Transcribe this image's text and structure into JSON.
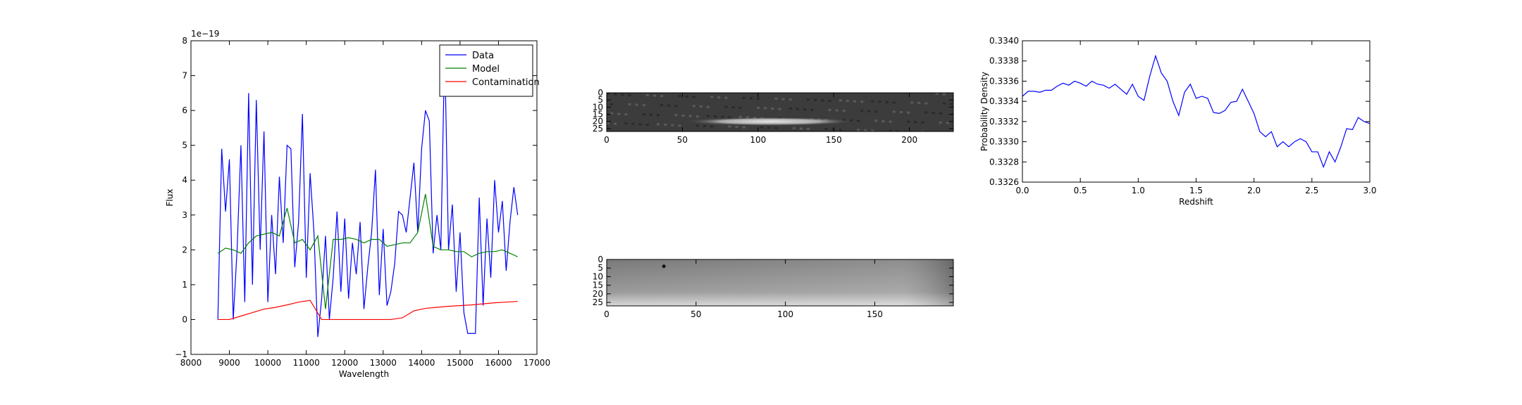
{
  "chart_data": [
    {
      "type": "line",
      "xlabel": "Wavelength",
      "ylabel": "Flux",
      "offset_text": "1e−19",
      "xlim": [
        8000,
        17000
      ],
      "xticks": [
        8000,
        9000,
        10000,
        11000,
        12000,
        13000,
        14000,
        15000,
        16000,
        17000
      ],
      "ylim": [
        -1,
        8
      ],
      "yticks": [
        {
          "value": -1,
          "label": "−1"
        },
        0,
        1,
        2,
        3,
        4,
        5,
        6,
        7,
        8
      ],
      "legend": "upper right",
      "series": [
        {
          "name": "Data",
          "color": "#0000ff",
          "x": [
            8700,
            8800,
            8900,
            9000,
            9100,
            9200,
            9300,
            9400,
            9500,
            9600,
            9700,
            9800,
            9900,
            10000,
            10100,
            10200,
            10300,
            10400,
            10500,
            10600,
            10700,
            10800,
            10900,
            11000,
            11100,
            11200,
            11300,
            11400,
            11500,
            11600,
            11700,
            11800,
            11900,
            12000,
            12100,
            12200,
            12300,
            12400,
            12500,
            12600,
            12700,
            12800,
            12900,
            13000,
            13100,
            13200,
            13300,
            13400,
            13500,
            13600,
            13700,
            13800,
            13900,
            14000,
            14100,
            14200,
            14300,
            14400,
            14500,
            14600,
            14700,
            14800,
            14900,
            15000,
            15100,
            15200,
            15300,
            15400,
            15500,
            15600,
            15700,
            15800,
            15900,
            16000,
            16100,
            16200,
            16300,
            16400,
            16500
          ],
          "values": [
            0,
            4.9,
            3.1,
            4.6,
            0,
            2,
            5,
            0.5,
            6.5,
            1,
            6.3,
            2,
            5.4,
            0.5,
            3,
            1.3,
            4.1,
            2.2,
            5,
            4.9,
            1.5,
            2.8,
            5.9,
            1.2,
            4.2,
            2.5,
            -0.5,
            0.6,
            2.4,
            0,
            1.2,
            3.1,
            0.8,
            2.9,
            0.6,
            2.2,
            1.3,
            2.8,
            0.3,
            1.5,
            2.5,
            4.3,
            0.7,
            2.6,
            0.4,
            0.8,
            1.6,
            3.1,
            3,
            2.5,
            3.5,
            4.5,
            2.5,
            4.9,
            6,
            5.7,
            1.9,
            3,
            2,
            7.8,
            2,
            3.3,
            0.8,
            2.5,
            0.2,
            -0.4,
            -0.4,
            -0.4,
            3.5,
            0.4,
            2.9,
            1.2,
            4,
            2.5,
            3.4,
            1.4,
            2.8,
            3.8,
            3
          ]
        },
        {
          "name": "Model",
          "color": "#008000",
          "x": [
            8700,
            8900,
            9100,
            9300,
            9500,
            9700,
            9900,
            10100,
            10300,
            10500,
            10700,
            10900,
            11100,
            11300,
            11500,
            11700,
            11900,
            12100,
            12300,
            12500,
            12700,
            12900,
            13100,
            13300,
            13500,
            13700,
            13900,
            14100,
            14300,
            14500,
            14700,
            14900,
            15100,
            15300,
            15500,
            15700,
            15900,
            16100,
            16300,
            16500
          ],
          "values": [
            1.9,
            2.05,
            2,
            1.9,
            2.2,
            2.4,
            2.45,
            2.5,
            2.4,
            3.2,
            2.2,
            2.3,
            2.0,
            2.4,
            0.3,
            2.3,
            2.3,
            2.35,
            2.3,
            2.2,
            2.3,
            2.3,
            2.1,
            2.15,
            2.2,
            2.2,
            2.5,
            3.6,
            2.1,
            2.0,
            2.0,
            1.95,
            1.95,
            1.8,
            1.9,
            1.95,
            1.95,
            2.0,
            1.9,
            1.8
          ]
        },
        {
          "name": "Contamination",
          "color": "#ff0000",
          "x": [
            8700,
            9000,
            9300,
            9600,
            9900,
            10200,
            10500,
            10800,
            11100,
            11400,
            11700,
            12000,
            12300,
            12600,
            12900,
            13200,
            13500,
            13800,
            14100,
            14400,
            14700,
            15000,
            15300,
            15600,
            15900,
            16200,
            16500
          ],
          "values": [
            0,
            0,
            0.1,
            0.2,
            0.3,
            0.35,
            0.42,
            0.5,
            0.55,
            0,
            0,
            0,
            0,
            0,
            0,
            0,
            0.05,
            0.25,
            0.32,
            0.35,
            0.38,
            0.4,
            0.42,
            0.45,
            0.48,
            0.5,
            0.52
          ]
        }
      ]
    },
    {
      "type": "image",
      "xlim": [
        0,
        229
      ],
      "xticks": [
        0,
        50,
        100,
        150,
        200
      ],
      "ylim": [
        27,
        0
      ],
      "yticks": [
        0,
        5,
        10,
        15,
        20,
        25
      ]
    },
    {
      "type": "image",
      "xlim": [
        0,
        194
      ],
      "xticks": [
        0,
        50,
        100,
        150
      ],
      "ylim": [
        27,
        0
      ],
      "yticks": [
        0,
        5,
        10,
        15,
        20,
        25
      ]
    },
    {
      "type": "line",
      "xlabel": "Redshift",
      "ylabel": "Probability Density",
      "xlim": [
        0,
        3
      ],
      "xticks": [
        {
          "value": 0,
          "label": "0.0"
        },
        0.5,
        {
          "value": 1,
          "label": "1.0"
        },
        1.5,
        {
          "value": 2,
          "label": "2.0"
        },
        2.5,
        {
          "value": 3,
          "label": "3.0"
        }
      ],
      "ylim": [
        0.3326,
        0.334
      ],
      "yticks": [
        0.3326,
        {
          "value": 0.3328,
          "label": "0.3328"
        },
        {
          "value": 0.333,
          "label": "0.3330"
        },
        0.3332,
        0.3334,
        0.3336,
        0.3338,
        {
          "value": 0.334,
          "label": "0.3340"
        }
      ],
      "series": [
        {
          "color": "#0000ff",
          "x": [
            0,
            0.05,
            0.1,
            0.15,
            0.2,
            0.25,
            0.3,
            0.35,
            0.4,
            0.45,
            0.5,
            0.55,
            0.6,
            0.65,
            0.7,
            0.75,
            0.8,
            0.85,
            0.9,
            0.95,
            1,
            1.05,
            1.1,
            1.15,
            1.2,
            1.25,
            1.3,
            1.35,
            1.4,
            1.45,
            1.5,
            1.55,
            1.6,
            1.65,
            1.7,
            1.75,
            1.8,
            1.85,
            1.9,
            1.95,
            2,
            2.05,
            2.1,
            2.15,
            2.2,
            2.25,
            2.3,
            2.35,
            2.4,
            2.45,
            2.5,
            2.55,
            2.6,
            2.65,
            2.7,
            2.75,
            2.8,
            2.85,
            2.9,
            2.95,
            3
          ],
          "values": [
            0.33345,
            0.3335,
            0.3335,
            0.33349,
            0.33351,
            0.33351,
            0.33355,
            0.33358,
            0.33356,
            0.3336,
            0.33358,
            0.33355,
            0.3336,
            0.33357,
            0.33356,
            0.33353,
            0.33357,
            0.33352,
            0.33347,
            0.33357,
            0.33345,
            0.33341,
            0.33365,
            0.33385,
            0.33368,
            0.3336,
            0.3334,
            0.33326,
            0.33349,
            0.33357,
            0.33343,
            0.33345,
            0.33343,
            0.33329,
            0.33328,
            0.33331,
            0.33339,
            0.3334,
            0.33352,
            0.3334,
            0.33328,
            0.3331,
            0.33305,
            0.3331,
            0.33295,
            0.333,
            0.33295,
            0.333,
            0.33303,
            0.333,
            0.3329,
            0.3329,
            0.33275,
            0.3329,
            0.3328,
            0.33295,
            0.33313,
            0.33312,
            0.33324,
            0.3332,
            0.33318
          ]
        }
      ]
    }
  ]
}
